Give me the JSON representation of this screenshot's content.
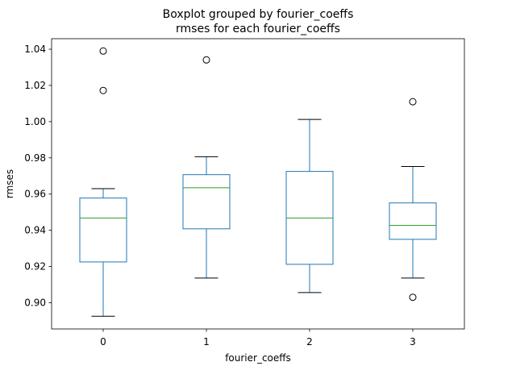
{
  "chart_data": {
    "type": "boxplot",
    "title": "Boxplot grouped by fourier_coeffs",
    "subtitle": "rmses for each fourier_coeffs",
    "xlabel": "fourier_coeffs",
    "ylabel": "rmses",
    "categories": [
      "0",
      "1",
      "2",
      "3"
    ],
    "ylim": [
      0.8855,
      1.0458
    ],
    "yticks": [
      0.9,
      0.92,
      0.94,
      0.96,
      0.98,
      1.0,
      1.02,
      1.04
    ],
    "ytick_labels": [
      "0.90",
      "0.92",
      "0.94",
      "0.96",
      "0.98",
      "1.00",
      "1.02",
      "1.04"
    ],
    "grid": false,
    "colors": {
      "box": "#1f77b4",
      "median": "#2ca02c",
      "whisker_cap": "#000000",
      "flier": "#000000"
    },
    "boxes": [
      {
        "category": "0",
        "whisker_low": 0.8925,
        "q1": 0.9225,
        "median": 0.9468,
        "q3": 0.9578,
        "whisker_high": 0.963,
        "fliers": [
          1.0172,
          1.039
        ]
      },
      {
        "category": "1",
        "whisker_low": 0.9136,
        "q1": 0.9408,
        "median": 0.9635,
        "q3": 0.9707,
        "whisker_high": 0.9806,
        "fliers": [
          1.0341
        ]
      },
      {
        "category": "2",
        "whisker_low": 0.9056,
        "q1": 0.9212,
        "median": 0.9468,
        "q3": 0.9725,
        "whisker_high": 1.0012,
        "fliers": []
      },
      {
        "category": "3",
        "whisker_low": 0.9136,
        "q1": 0.935,
        "median": 0.9427,
        "q3": 0.9551,
        "whisker_high": 0.9752,
        "fliers": [
          0.903,
          1.011
        ]
      }
    ]
  }
}
